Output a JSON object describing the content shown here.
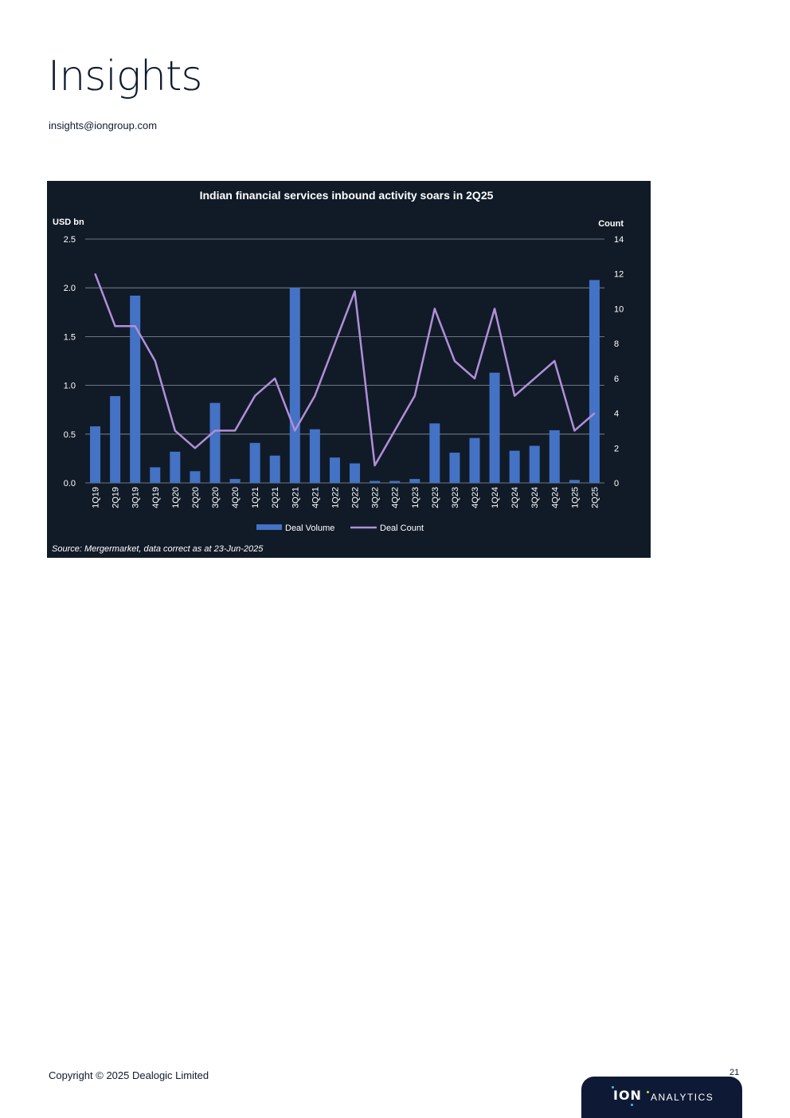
{
  "page": {
    "title": "Insights",
    "email": "insights@iongroup.com",
    "copyright": "Copyright © 2025 Dealogic Limited",
    "page_number": "21",
    "brand": {
      "mark": "ION",
      "text": "ANALYTICS"
    }
  },
  "chart_data": {
    "type": "bar",
    "title": "Indian financial services inbound activity soars in 2Q25",
    "source": "Source: Mergermarket, data correct as at 23-Jun-2025",
    "categories": [
      "1Q19",
      "2Q19",
      "3Q19",
      "4Q19",
      "1Q20",
      "2Q20",
      "3Q20",
      "4Q20",
      "1Q21",
      "2Q21",
      "3Q21",
      "4Q21",
      "1Q22",
      "2Q22",
      "3Q22",
      "4Q22",
      "1Q23",
      "2Q23",
      "3Q23",
      "4Q23",
      "1Q24",
      "2Q24",
      "3Q24",
      "4Q24",
      "1Q25",
      "2Q25"
    ],
    "series": [
      {
        "name": "Deal Volume",
        "type": "bar",
        "axis": "left",
        "color": "#4472c4",
        "values": [
          0.58,
          0.89,
          1.92,
          0.16,
          0.32,
          0.12,
          0.82,
          0.04,
          0.41,
          0.28,
          2.0,
          0.55,
          0.26,
          0.2,
          0.02,
          0.02,
          0.04,
          0.61,
          0.31,
          0.46,
          1.13,
          0.33,
          0.38,
          0.54,
          0.03,
          2.08
        ]
      },
      {
        "name": "Deal Count",
        "type": "line",
        "axis": "right",
        "color": "#b18fd8",
        "values": [
          12,
          9,
          9,
          7,
          3,
          2,
          3,
          3,
          5,
          6,
          3,
          5,
          8,
          11,
          1,
          3,
          5,
          10,
          7,
          6,
          10,
          5,
          6,
          7,
          3,
          4
        ]
      }
    ],
    "ylabel": "USD bn",
    "y2label": "Count",
    "ylim": [
      0,
      2.5
    ],
    "y2lim": [
      0,
      14
    ],
    "yticks": [
      "0.0",
      "0.5",
      "1.0",
      "1.5",
      "2.0",
      "2.5"
    ],
    "y2ticks": [
      "0",
      "2",
      "4",
      "6",
      "8",
      "10",
      "12",
      "14"
    ],
    "grid": true,
    "legend": "bottom-center",
    "colors": {
      "background": "#111b28",
      "grid": "#8a939e",
      "text": "#ffffff"
    }
  }
}
